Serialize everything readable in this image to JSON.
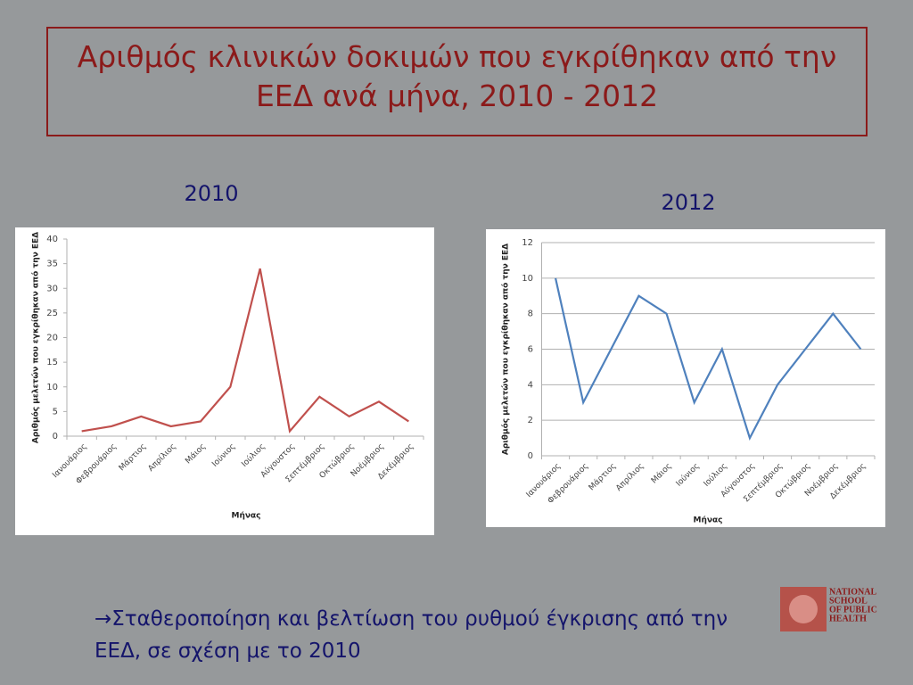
{
  "slide": {
    "title": "Αριθμός κλινικών δοκιμών που εγκρίθηκαν από την ΕΕΔ ανά μήνα, 2010 - 2012",
    "note": "→Σταθεροποίηση και βελτίωση του ρυθμού έγκρισης από  την ΕΕΔ, σε σχέση με το 2010"
  },
  "logo": {
    "lines": [
      "NATIONAL",
      "SCHOOL",
      "OF PUBLIC",
      "HEALTH"
    ]
  },
  "chart_data": [
    {
      "type": "line",
      "title": "2010",
      "y_label": "Αριθμός μελετών που εγκρίθηκαν από την ΕΕΔ",
      "x_label": "Μήνας",
      "categories": [
        "Ιανουάριος",
        "Φεβρουάριος",
        "Μάρτιος",
        "Απρίλιος",
        "Μάιος",
        "Ιούνιος",
        "Ιούλιος",
        "Αύγουστος",
        "Σεπτέμβριος",
        "Οκτώβριος",
        "Νοέμβριος",
        "Δεκέμβριος"
      ],
      "values": [
        1,
        2,
        4,
        2,
        3,
        10,
        34,
        1,
        8,
        4,
        7,
        3
      ],
      "color": "#c0504d",
      "ylim": [
        0,
        40
      ],
      "yticks": [
        0,
        5,
        10,
        15,
        20,
        25,
        30,
        35,
        40
      ],
      "grid": false
    },
    {
      "type": "line",
      "title": "2012",
      "y_label": "Αριθμός μελετών που εγκρίθηκαν από την ΕΕΔ",
      "x_label": "Μήνας",
      "categories": [
        "Ιανουάριος",
        "Φεβρουάριος",
        "Μάρτιος",
        "Απρίλιος",
        "Μάιος",
        "Ιούνιος",
        "Ιούλιος",
        "Αύγουστος",
        "Σεπτέμβριος",
        "Οκτώβριος",
        "Νοέμβριος",
        "Δεκέμβριος"
      ],
      "values": [
        10,
        3,
        6,
        9,
        8,
        3,
        6,
        1,
        4,
        6,
        8,
        6
      ],
      "color": "#4f81bd",
      "ylim": [
        0,
        12
      ],
      "yticks": [
        0,
        2,
        4,
        6,
        8,
        10,
        12
      ],
      "grid": true
    }
  ]
}
